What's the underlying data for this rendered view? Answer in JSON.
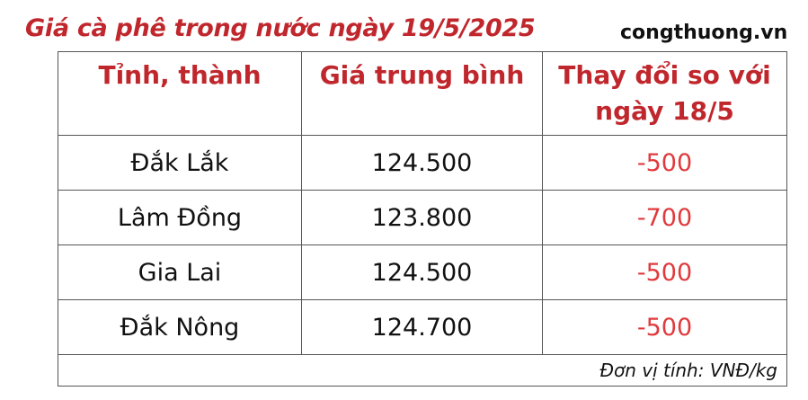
{
  "title": "Giá cà phê trong nước ngày 19/5/2025",
  "brand": "congthuong.vn",
  "table": {
    "headers": [
      "Tỉnh, thành",
      "Giá trung bình",
      "Thay đổi so với ngày 18/5"
    ],
    "rows": [
      {
        "province": "Đắk Lắk",
        "price": "124.500",
        "change": "-500"
      },
      {
        "province": "Lâm Đồng",
        "price": "123.800",
        "change": "-700"
      },
      {
        "province": "Gia Lai",
        "price": "124.500",
        "change": "-500"
      },
      {
        "province": "Đắk Nông",
        "price": "124.700",
        "change": "-500"
      }
    ],
    "footer": "Đơn vị tính: VNĐ/kg"
  },
  "colors": {
    "title": "#c0272d",
    "header": "#c0272d",
    "change": "#e03a3e"
  }
}
